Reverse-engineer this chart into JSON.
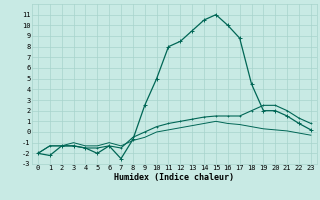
{
  "xlabel": "Humidex (Indice chaleur)",
  "background_color": "#c8eae4",
  "grid_color": "#a8d4cc",
  "line_color": "#006655",
  "x_values": [
    0,
    1,
    2,
    3,
    4,
    5,
    6,
    7,
    8,
    9,
    10,
    11,
    12,
    13,
    14,
    15,
    16,
    17,
    18,
    19,
    20,
    21,
    22,
    23
  ],
  "series1": [
    -2.0,
    -2.2,
    -1.3,
    -1.3,
    -1.5,
    -2.0,
    -1.3,
    -2.5,
    -0.7,
    2.5,
    5.0,
    8.0,
    8.5,
    9.5,
    10.5,
    11.0,
    10.0,
    8.8,
    4.5,
    2.0,
    2.0,
    1.5,
    0.8,
    0.2
  ],
  "series2": [
    -2.0,
    -1.3,
    -1.3,
    -1.3,
    -1.5,
    -1.5,
    -1.3,
    -1.5,
    -0.5,
    0.0,
    0.5,
    0.8,
    1.0,
    1.2,
    1.4,
    1.5,
    1.5,
    1.5,
    2.0,
    2.5,
    2.5,
    2.0,
    1.3,
    0.8
  ],
  "series3": [
    -2.0,
    -1.3,
    -1.3,
    -1.0,
    -1.3,
    -1.3,
    -1.0,
    -1.3,
    -0.8,
    -0.5,
    0.0,
    0.2,
    0.4,
    0.6,
    0.8,
    1.0,
    0.8,
    0.7,
    0.5,
    0.3,
    0.2,
    0.1,
    -0.1,
    -0.3
  ],
  "ylim": [
    -3,
    12
  ],
  "xlim": [
    -0.5,
    23.5
  ],
  "yticks": [
    -3,
    -2,
    -1,
    0,
    1,
    2,
    3,
    4,
    5,
    6,
    7,
    8,
    9,
    10,
    11
  ],
  "xticks": [
    0,
    1,
    2,
    3,
    4,
    5,
    6,
    7,
    8,
    9,
    10,
    11,
    12,
    13,
    14,
    15,
    16,
    17,
    18,
    19,
    20,
    21,
    22,
    23
  ],
  "tick_fontsize": 5.0,
  "xlabel_fontsize": 6.0
}
